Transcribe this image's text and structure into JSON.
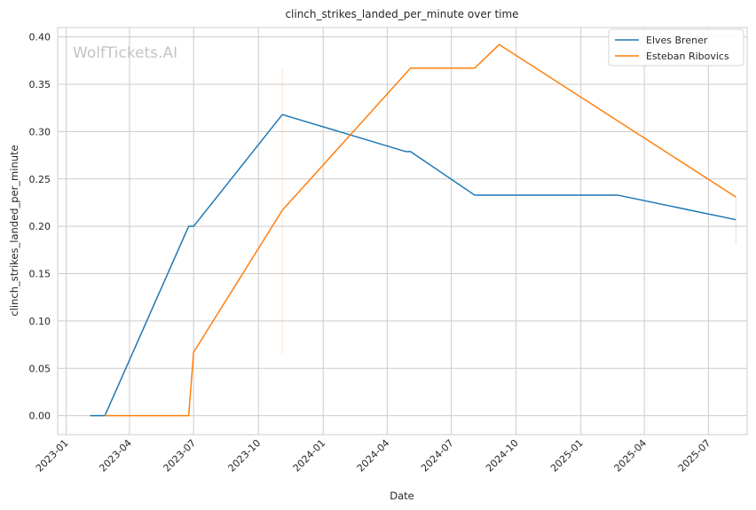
{
  "chart_data": {
    "type": "line",
    "title": "clinch_strikes_landed_per_minute over time",
    "xlabel": "Date",
    "ylabel": "clinch_strikes_landed_per_minute",
    "watermark": "WolfTickets.AI",
    "x_ticks": [
      "2023-01",
      "2023-04",
      "2023-07",
      "2023-10",
      "2024-01",
      "2024-04",
      "2024-07",
      "2024-10",
      "2025-01",
      "2025-04",
      "2025-07"
    ],
    "y_ticks": [
      "0.00",
      "0.05",
      "0.10",
      "0.15",
      "0.20",
      "0.25",
      "0.30",
      "0.35",
      "0.40"
    ],
    "xlim": [
      "2022-12-20",
      "2025-08-25"
    ],
    "ylim": [
      -0.02,
      0.41
    ],
    "grid": true,
    "legend_position": "top-right",
    "series": [
      {
        "name": "Elves Brener",
        "color": "#1f77b4",
        "points": [
          [
            "2023-02-04",
            0.0
          ],
          [
            "2023-02-25",
            0.0
          ],
          [
            "2023-06-24",
            0.2
          ],
          [
            "2023-07-01",
            0.2
          ],
          [
            "2023-11-04",
            0.318
          ],
          [
            "2024-04-27",
            0.279
          ],
          [
            "2024-05-04",
            0.279
          ],
          [
            "2024-08-03",
            0.233
          ],
          [
            "2025-02-22",
            0.233
          ],
          [
            "2025-08-09",
            0.207
          ]
        ],
        "band": {
          "x": "2025-08-09",
          "low": 0.18,
          "high": 0.233
        }
      },
      {
        "name": "Esteban Ribovics",
        "color": "#ff7f0e",
        "points": [
          [
            "2023-02-25",
            0.0
          ],
          [
            "2023-06-24",
            0.0
          ],
          [
            "2023-07-01",
            0.067
          ],
          [
            "2023-11-04",
            0.217
          ],
          [
            "2024-05-04",
            0.367
          ],
          [
            "2024-08-03",
            0.367
          ],
          [
            "2024-09-07",
            0.392
          ],
          [
            "2025-08-09",
            0.231
          ]
        ],
        "band": {
          "x": "2023-11-04",
          "low": 0.065,
          "high": 0.367
        }
      }
    ]
  }
}
